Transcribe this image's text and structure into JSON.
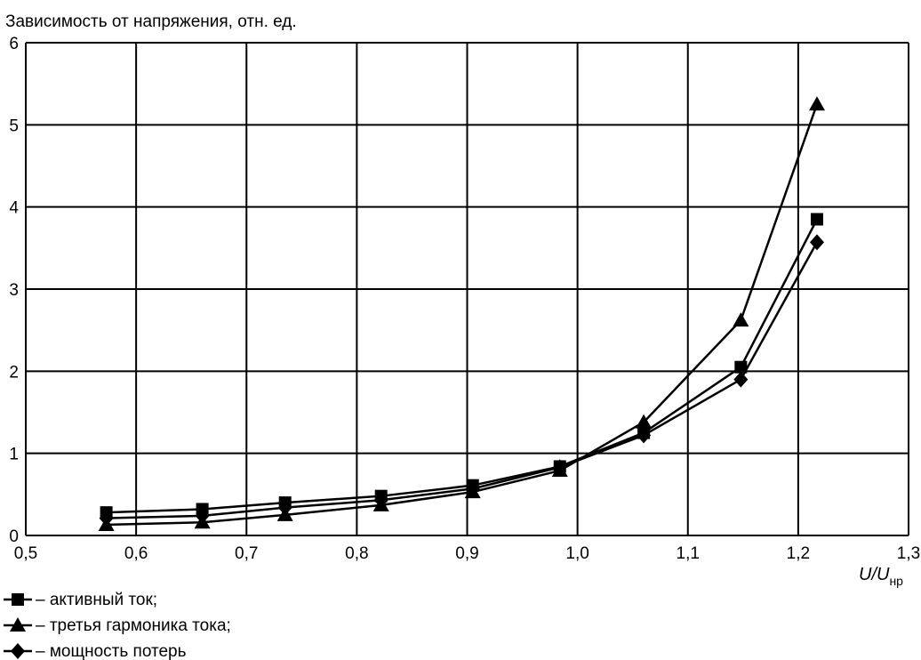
{
  "chart_data": {
    "type": "line",
    "title": "",
    "ylabel": "Зависимость от напряжения, отн. ед.",
    "xlabel_main": "U/U",
    "xlabel_sub": "нр",
    "xlim": [
      0.5,
      1.3
    ],
    "ylim": [
      0,
      6
    ],
    "x_ticks": [
      "0,5",
      "0,6",
      "0,7",
      "0,8",
      "0,9",
      "1,0",
      "1,1",
      "1,2",
      "1,3"
    ],
    "y_ticks": [
      "0",
      "1",
      "2",
      "3",
      "4",
      "5",
      "6"
    ],
    "grid": true,
    "legend_position": "bottom-left",
    "series": [
      {
        "name": "– активный ток;",
        "marker": "square",
        "color": "#000000",
        "points": [
          [
            0.573,
            0.28
          ],
          [
            0.66,
            0.32
          ],
          [
            0.735,
            0.4
          ],
          [
            0.822,
            0.48
          ],
          [
            0.905,
            0.61
          ],
          [
            0.984,
            0.84
          ],
          [
            1.06,
            1.25
          ],
          [
            1.148,
            2.05
          ],
          [
            1.217,
            3.85
          ]
        ]
      },
      {
        "name": "– третья гармоника тока;",
        "marker": "triangle",
        "color": "#000000",
        "points": [
          [
            0.573,
            0.13
          ],
          [
            0.66,
            0.16
          ],
          [
            0.735,
            0.25
          ],
          [
            0.822,
            0.37
          ],
          [
            0.905,
            0.53
          ],
          [
            0.984,
            0.79
          ],
          [
            1.06,
            1.38
          ],
          [
            1.148,
            2.62
          ],
          [
            1.217,
            5.25
          ]
        ]
      },
      {
        "name": "– мощность потерь",
        "marker": "diamond",
        "color": "#000000",
        "points": [
          [
            0.573,
            0.21
          ],
          [
            0.66,
            0.24
          ],
          [
            0.735,
            0.34
          ],
          [
            0.822,
            0.43
          ],
          [
            0.905,
            0.57
          ],
          [
            0.984,
            0.83
          ],
          [
            1.06,
            1.22
          ],
          [
            1.148,
            1.9
          ],
          [
            1.217,
            3.57
          ]
        ]
      }
    ]
  }
}
